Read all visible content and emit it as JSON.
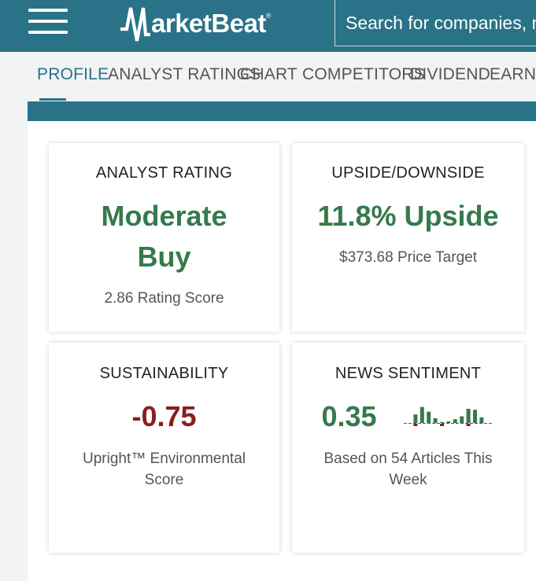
{
  "header": {
    "logo_text": "arketBeat",
    "logo_tm": "®",
    "search_placeholder": "Search for companies, news..."
  },
  "tabs": [
    {
      "label": "PROFILE"
    },
    {
      "label": "ANALYST RATINGS"
    },
    {
      "label": "CHART"
    },
    {
      "label": "COMPETITORS"
    },
    {
      "label": "DIVIDEND"
    },
    {
      "label": "EARNINGS"
    }
  ],
  "cards": {
    "analyst_rating": {
      "title": "ANALYST RATING",
      "value_line1": "Moderate",
      "value_line2": "Buy",
      "sub": "2.86 Rating Score"
    },
    "upside": {
      "title": "UPSIDE/DOWNSIDE",
      "value": "11.8% Upside",
      "sub": "$373.68 Price Target"
    },
    "sustainability": {
      "title": "SUSTAINABILITY",
      "value": "-0.75",
      "sub": "Upright™ Environmental Score"
    },
    "news_sentiment": {
      "title": "NEWS SENTIMENT",
      "value": "0.35",
      "sub": "Based on 54 Articles This Week",
      "sparkline": [
        0,
        0.45,
        0.85,
        0.6,
        0.25,
        0.05,
        0.08,
        0.2,
        0.35,
        0.75,
        0.7,
        0.3,
        0
      ]
    }
  },
  "colors": {
    "brand": "#2a7287",
    "positive": "#357a4c",
    "negative": "#8c1d1d"
  }
}
